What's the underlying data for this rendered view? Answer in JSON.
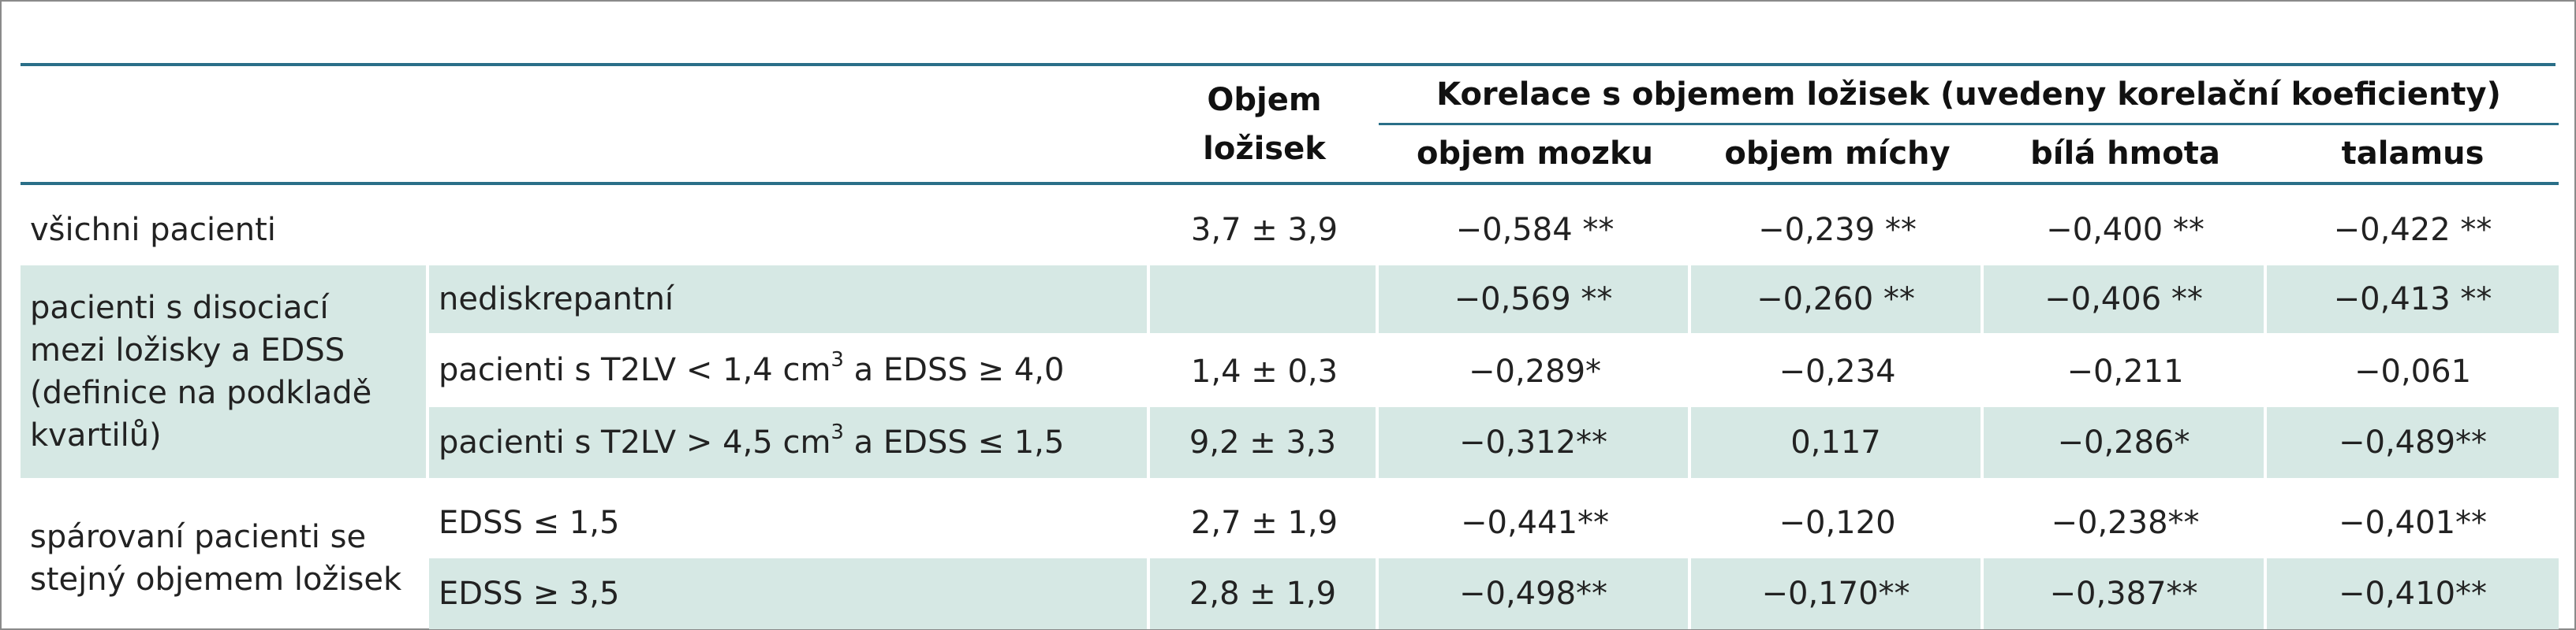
{
  "header": {
    "volume_col": [
      "Objem",
      "ložisek"
    ],
    "group": "Korelace s objemem ložisek (uvedeny korelační koeficienty)",
    "subcols": [
      "objem mozku",
      "objem míchy",
      "bílá hmota",
      "talamus"
    ]
  },
  "rows": {
    "all": {
      "label": "všichni pacienti",
      "volume": "3,7 ± 3,9",
      "values": [
        "−0,584 **",
        "−0,239 **",
        "−0,400 **",
        "−0,422 **"
      ]
    },
    "dissociation": {
      "label_lines": [
        "pacienti s disociací",
        "mezi ložisky a EDSS",
        "(definice na podkladě",
        "kvartilů)"
      ],
      "subrows": [
        {
          "label": "nediskrepantní",
          "volume": "",
          "values": [
            "−0,569 **",
            "−0,260 **",
            "−0,406 **",
            "−0,413 **"
          ]
        },
        {
          "label_pre": "pacienti s T2LV < 1,4 cm",
          "label_sup": "3",
          "label_post": " a EDSS ≥ 4,0",
          "volume": "1,4 ± 0,3",
          "values": [
            "−0,289*",
            "−0,234",
            "−0,211",
            "−0,061"
          ]
        },
        {
          "label_pre": "pacienti s T2LV > 4,5 cm",
          "label_sup": "3",
          "label_post": " a EDSS ≤ 1,5",
          "volume": "9,2 ± 3,3",
          "values": [
            "−0,312**",
            "0,117",
            "−0,286*",
            "−0,489**"
          ]
        }
      ]
    },
    "matched": {
      "label_lines": [
        "spárovaní pacienti se",
        "stejný objemem ložisek"
      ],
      "subrows": [
        {
          "label": "EDSS ≤ 1,5",
          "volume": "2,7 ± 1,9",
          "values": [
            "−0,441**",
            "−0,120",
            "−0,238**",
            "−0,401**"
          ]
        },
        {
          "label": "EDSS ≥ 3,5",
          "volume": "2,8 ± 1,9",
          "values": [
            "−0,498**",
            "−0,170**",
            "−0,387**",
            "−0,410**"
          ]
        }
      ]
    }
  }
}
